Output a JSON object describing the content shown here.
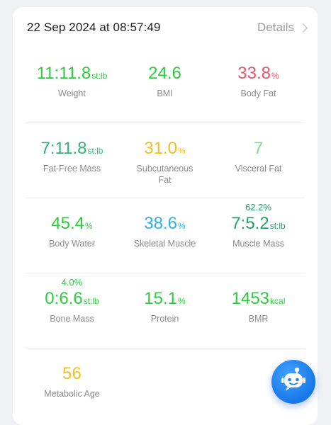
{
  "header": {
    "timestamp": "22 Sep 2024 at 08:57:49",
    "details_label": "Details"
  },
  "metrics": [
    {
      "id": "weight",
      "value": "11:11.8",
      "unit": "st:lb",
      "label": "Weight",
      "color": "#2ccc3e"
    },
    {
      "id": "bmi",
      "value": "24.6",
      "unit": "",
      "label": "BMI",
      "color": "#2ccc3e"
    },
    {
      "id": "body-fat",
      "value": "33.8",
      "unit": "%",
      "label": "Body Fat",
      "color": "#ea5368"
    },
    {
      "id": "fat-free-mass",
      "value": "7:11.8",
      "unit": "st:lb",
      "label": "Fat-Free Mass",
      "color": "#34b07c"
    },
    {
      "id": "subcutaneous-fat",
      "value": "31.0",
      "unit": "%",
      "label": "Subcutaneous Fat",
      "color": "#f3be1e"
    },
    {
      "id": "visceral-fat",
      "value": "7",
      "unit": "",
      "label": "Visceral Fat",
      "color": "#7ddc95"
    },
    {
      "id": "body-water",
      "value": "45.4",
      "unit": "%",
      "label": "Body Water",
      "color": "#2ccc3e"
    },
    {
      "id": "skeletal-muscle",
      "value": "38.6",
      "unit": "%",
      "label": "Skeletal Muscle",
      "color": "#2db0e8"
    },
    {
      "id": "muscle-mass",
      "pct": "62.2%",
      "value": "7:5.2",
      "unit": "st:lb",
      "label": "Muscle Mass",
      "color": "#21a066"
    },
    {
      "id": "bone-mass",
      "pct": "4.0%",
      "value": "0:6.6",
      "unit": "st:lb",
      "label": "Bone Mass",
      "color": "#2ccc3e"
    },
    {
      "id": "protein",
      "value": "15.1",
      "unit": "%",
      "label": "Protein",
      "color": "#2ccc3e"
    },
    {
      "id": "bmr",
      "value": "1453",
      "unit": "kcal",
      "label": "BMR",
      "color": "#2ccc3e"
    },
    {
      "id": "metabolic-age",
      "value": "56",
      "unit": "",
      "label": "Metabolic Age",
      "color": "#f3be1e"
    }
  ],
  "icons": {
    "details": "chevron-right-icon",
    "assistant": "robot-assistant-icon"
  }
}
